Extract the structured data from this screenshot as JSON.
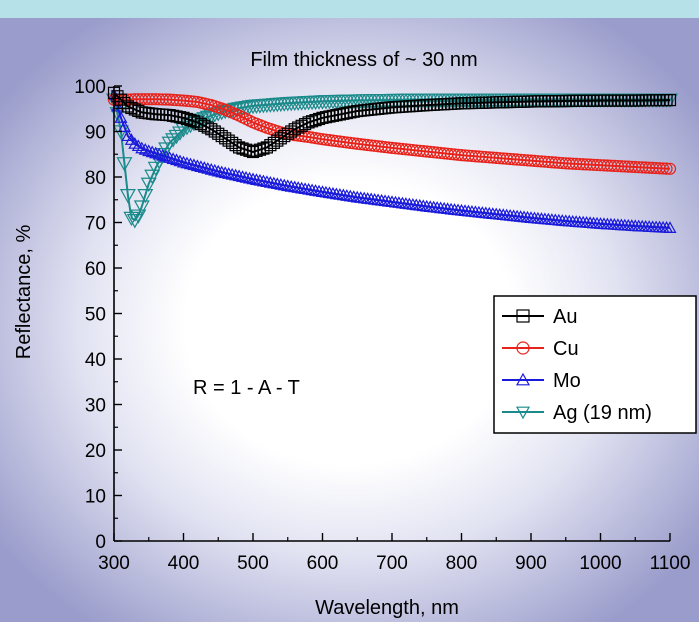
{
  "chart_data": {
    "type": "line",
    "title": "Film thickness of ~ 30 nm",
    "xlabel": "Wavelength, nm",
    "ylabel": "Reflectance, %",
    "xlim": [
      300,
      1100
    ],
    "ylim": [
      0,
      100
    ],
    "xticks": [
      300,
      400,
      500,
      600,
      700,
      800,
      900,
      1000,
      1100
    ],
    "yticks": [
      0,
      10,
      20,
      30,
      40,
      50,
      60,
      70,
      80,
      90,
      100
    ],
    "annotation": "R = 1 - A - T",
    "legend_position": "right",
    "grid": false,
    "series": [
      {
        "name": "Au",
        "color": "#000000",
        "marker": "square",
        "x": [
          300,
          310,
          320,
          340,
          360,
          380,
          400,
          420,
          440,
          460,
          480,
          500,
          520,
          540,
          560,
          580,
          600,
          650,
          700,
          750,
          800,
          850,
          900,
          950,
          1000,
          1050,
          1100
        ],
        "y": [
          98.5,
          97,
          95.5,
          94.2,
          93.8,
          93.6,
          93,
          92,
          90.5,
          88.5,
          86.5,
          85.5,
          86.5,
          88.5,
          90.5,
          92,
          93,
          94.5,
          95.3,
          95.8,
          96.2,
          96.4,
          96.6,
          96.7,
          96.8,
          96.8,
          96.9
        ]
      },
      {
        "name": "Cu",
        "color": "#e8231b",
        "marker": "circle",
        "x": [
          300,
          310,
          320,
          330,
          340,
          360,
          380,
          400,
          420,
          440,
          460,
          480,
          500,
          520,
          540,
          560,
          580,
          600,
          650,
          700,
          750,
          800,
          850,
          900,
          950,
          1000,
          1050,
          1100
        ],
        "y": [
          97,
          97,
          97,
          97.1,
          97.1,
          97.1,
          97,
          96.8,
          96.5,
          95.8,
          94.8,
          93.5,
          92,
          90.8,
          89.8,
          89.2,
          88.8,
          88.3,
          87.3,
          86.4,
          85.6,
          84.8,
          84.2,
          83.6,
          83,
          82.6,
          82.2,
          81.8
        ]
      },
      {
        "name": "Mo",
        "color": "#1a1adc",
        "marker": "triangle-up",
        "x": [
          300,
          310,
          320,
          330,
          340,
          350,
          360,
          380,
          400,
          450,
          500,
          550,
          600,
          650,
          700,
          750,
          800,
          850,
          900,
          950,
          1000,
          1050,
          1100
        ],
        "y": [
          98,
          93,
          89,
          87.3,
          86.3,
          85.7,
          85.2,
          84.2,
          83.2,
          81.2,
          79.5,
          78,
          76.7,
          75.5,
          74.5,
          73.5,
          72.6,
          71.8,
          71,
          70.3,
          69.7,
          69.2,
          68.8
        ]
      },
      {
        "name": "Ag (19 nm)",
        "color": "#1a8a8a",
        "marker": "triangle-down",
        "x": [
          300,
          305,
          310,
          315,
          320,
          325,
          330,
          335,
          340,
          345,
          350,
          360,
          370,
          380,
          400,
          420,
          440,
          460,
          480,
          500,
          550,
          600,
          650,
          700,
          750,
          800,
          900,
          1000,
          1100
        ],
        "y": [
          97,
          94,
          90,
          83,
          76,
          71,
          70.5,
          71.5,
          73.5,
          76,
          78.5,
          82,
          85,
          87.5,
          90.5,
          92.3,
          93.5,
          94.5,
          95.1,
          95.6,
          96.2,
          96.6,
          96.8,
          96.9,
          97,
          97,
          97,
          97,
          97
        ]
      }
    ]
  }
}
